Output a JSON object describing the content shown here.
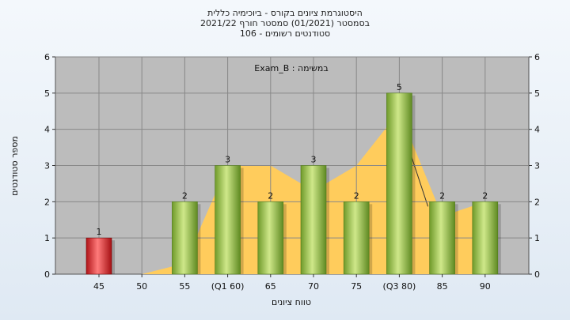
{
  "chart_data": {
    "type": "bar",
    "title_lines": [
      "היסטוגרמת ציונים בקורס - ביוכימיה כללית",
      "בסמסטר  (01/2021)  סמסטר חורף 2021/22",
      "סטודנטים רשומים - 106"
    ],
    "annotation": "במשימה : Exam_B",
    "xlabel": "טווח ציונים",
    "ylabel": "מספר סטודנטים",
    "categories": [
      "45",
      "50",
      "55",
      "(Q1 60)",
      "65",
      "70",
      "75",
      "(Q3 80)",
      "85",
      "90"
    ],
    "values": [
      1,
      0,
      2,
      3,
      2,
      3,
      2,
      5,
      2,
      2
    ],
    "data_labels": [
      "1",
      "",
      "2",
      "3",
      "2",
      "3",
      "2",
      "5",
      "2",
      "2"
    ],
    "highlight_index": 0,
    "ylim": [
      0,
      6
    ],
    "yticks": [
      "0",
      "1",
      "2",
      "3",
      "4",
      "5",
      "6"
    ],
    "distribution_area": [
      0,
      0,
      0.3,
      3,
      3,
      2.3,
      3,
      4.5,
      1.6,
      2
    ],
    "colors": {
      "bar": "#8fbf3f",
      "bar_highlight": "#e8262b",
      "area": "#ffcc5c",
      "plot_bg": "#bcbcbc",
      "grid": "#888888"
    },
    "grid": true
  }
}
